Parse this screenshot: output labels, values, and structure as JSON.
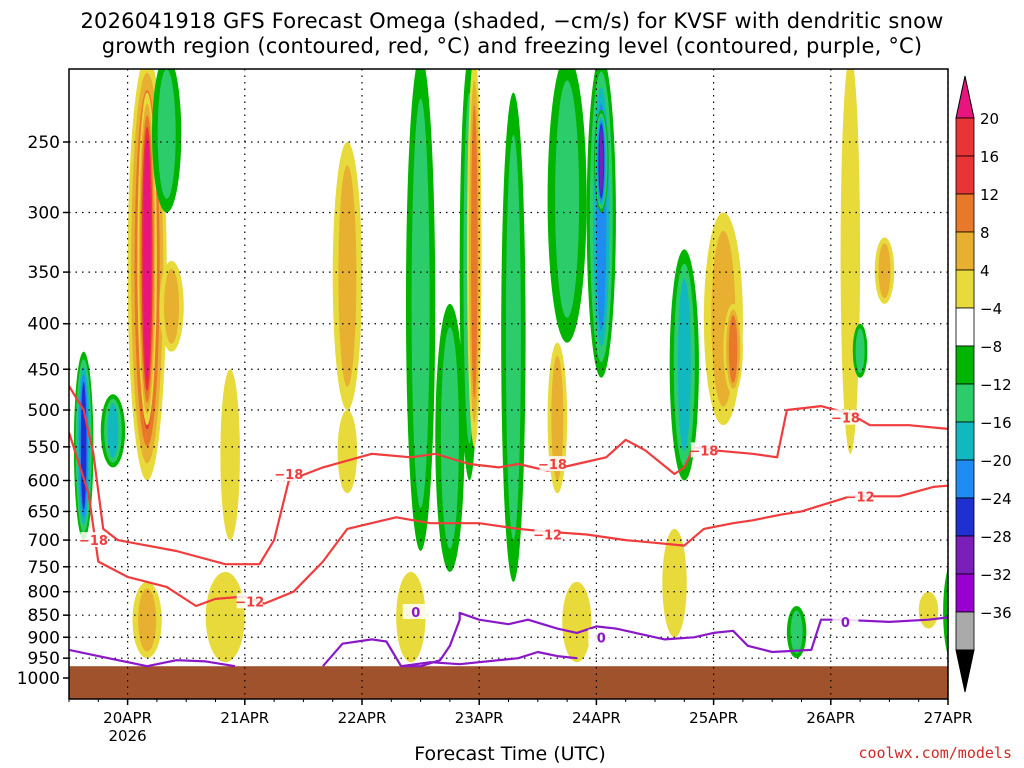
{
  "page": {
    "title_line1": "2026041918 GFS Forecast Omega (shaded, −cm/s) for KVSF with dendritic snow",
    "title_line2": "growth region (contoured, red, °C) and freezing level (contoured, purple, °C)",
    "credit": "coolwx.com/models"
  },
  "chart_data": {
    "type": "heatmap",
    "title": "2026041918 GFS Forecast Omega (shaded, −cm/s) for KVSF with dendritic snow growth region (contoured, red, °C) and freezing level (contoured, purple, °C)",
    "xlabel": "Forecast Time (UTC)",
    "ylabel": "",
    "x_range_hours": [
      -12,
      168
    ],
    "y_scale": "log-pressure (hPa), inverted",
    "ylim": [
      1000,
      200
    ],
    "grid": true,
    "x_ticks": [
      {
        "hour": 0,
        "label": "20APR",
        "sublabel": "2026"
      },
      {
        "hour": 24,
        "label": "21APR"
      },
      {
        "hour": 48,
        "label": "22APR"
      },
      {
        "hour": 72,
        "label": "23APR"
      },
      {
        "hour": 96,
        "label": "24APR"
      },
      {
        "hour": 120,
        "label": "25APR"
      },
      {
        "hour": 144,
        "label": "26APR"
      },
      {
        "hour": 168,
        "label": "27APR"
      }
    ],
    "y_ticks": [
      {
        "p": 250,
        "label": "250"
      },
      {
        "p": 300,
        "label": "300"
      },
      {
        "p": 350,
        "label": "350"
      },
      {
        "p": 400,
        "label": "400"
      },
      {
        "p": 450,
        "label": "450"
      },
      {
        "p": 500,
        "label": "500"
      },
      {
        "p": 550,
        "label": "550"
      },
      {
        "p": 600,
        "label": "600"
      },
      {
        "p": 650,
        "label": "650"
      },
      {
        "p": 700,
        "label": "700"
      },
      {
        "p": 750,
        "label": "750"
      },
      {
        "p": 800,
        "label": "800"
      },
      {
        "p": 850,
        "label": "850"
      },
      {
        "p": 900,
        "label": "900"
      },
      {
        "p": 950,
        "label": "950"
      },
      {
        "p": 1000,
        "label": "1000"
      }
    ],
    "colorbar": {
      "levels": [
        {
          "label": "20",
          "color": "#e8157e"
        },
        {
          "label": "16",
          "color": "#e83434"
        },
        {
          "label": "12",
          "color": "#e8782a"
        },
        {
          "label": "8",
          "color": "#e8b030"
        },
        {
          "label": "4",
          "color": "#e8da3a"
        },
        {
          "label": "−4",
          "color": "#ffffff"
        },
        {
          "label": "−8",
          "color": "#00b400"
        },
        {
          "label": "−12",
          "color": "#2ccc6a"
        },
        {
          "label": "−16",
          "color": "#12b8c0"
        },
        {
          "label": "−20",
          "color": "#1e8cf0"
        },
        {
          "label": "−24",
          "color": "#1e30d0"
        },
        {
          "label": "−28",
          "color": "#7a1fb8"
        },
        {
          "label": "−32",
          "color": "#9800d0"
        },
        {
          "label": "−36",
          "color": "#aaaaaa"
        }
      ],
      "top_color": "#e8157e",
      "bottom_color": "#000000"
    },
    "omega_blobs": [
      {
        "hour": 4,
        "p0": 200,
        "p1": 600,
        "hw": 4,
        "value": 20
      },
      {
        "hour": 4,
        "p0": 220,
        "p1": 520,
        "hw": 2,
        "value": 24
      },
      {
        "hour": 9,
        "p0": 340,
        "p1": 430,
        "hw": 2.5,
        "value": 9
      },
      {
        "hour": -9,
        "p0": 430,
        "p1": 700,
        "hw": 2,
        "value": -20
      },
      {
        "hour": -3,
        "p0": 480,
        "p1": 580,
        "hw": 2.5,
        "value": -12
      },
      {
        "hour": 8,
        "p0": 200,
        "p1": 300,
        "hw": 3,
        "value": -8
      },
      {
        "hour": 21,
        "p0": 450,
        "p1": 700,
        "hw": 2,
        "value": 6
      },
      {
        "hour": 45,
        "p0": 250,
        "p1": 500,
        "hw": 3,
        "value": 10
      },
      {
        "hour": 45,
        "p0": 500,
        "p1": 620,
        "hw": 2,
        "value": 6
      },
      {
        "hour": 60,
        "p0": 200,
        "p1": 720,
        "hw": 3,
        "value": -9
      },
      {
        "hour": 66,
        "p0": 380,
        "p1": 760,
        "hw": 3,
        "value": -10
      },
      {
        "hour": 70,
        "p0": 200,
        "p1": 600,
        "hw": 2,
        "value": -9
      },
      {
        "hour": 71,
        "p0": 200,
        "p1": 550,
        "hw": 1.5,
        "value": 13
      },
      {
        "hour": 79,
        "p0": 220,
        "p1": 780,
        "hw": 2.5,
        "value": -9
      },
      {
        "hour": 88,
        "p0": 420,
        "p1": 620,
        "hw": 2,
        "value": 8
      },
      {
        "hour": 90,
        "p0": 200,
        "p1": 420,
        "hw": 4,
        "value": -10
      },
      {
        "hour": 97,
        "p0": 200,
        "p1": 460,
        "hw": 3,
        "value": -17
      },
      {
        "hour": 97,
        "p0": 230,
        "p1": 300,
        "hw": 1.5,
        "value": -25
      },
      {
        "hour": 114,
        "p0": 330,
        "p1": 600,
        "hw": 3,
        "value": -12
      },
      {
        "hour": 122,
        "p0": 300,
        "p1": 520,
        "hw": 4,
        "value": 8
      },
      {
        "hour": 124,
        "p0": 380,
        "p1": 480,
        "hw": 2,
        "value": 12
      },
      {
        "hour": 148,
        "p0": 200,
        "p1": 560,
        "hw": 2,
        "value": 5
      },
      {
        "hour": 155,
        "p0": 320,
        "p1": 380,
        "hw": 2,
        "value": 9
      },
      {
        "hour": 150,
        "p0": 400,
        "p1": 460,
        "hw": 1.5,
        "value": -9
      },
      {
        "hour": 4,
        "p0": 780,
        "p1": 950,
        "hw": 3,
        "value": 8
      },
      {
        "hour": 20,
        "p0": 760,
        "p1": 960,
        "hw": 4,
        "value": 7
      },
      {
        "hour": 58,
        "p0": 760,
        "p1": 960,
        "hw": 3,
        "value": 5
      },
      {
        "hour": 92,
        "p0": 780,
        "p1": 960,
        "hw": 3,
        "value": 6
      },
      {
        "hour": 112,
        "p0": 680,
        "p1": 900,
        "hw": 2.5,
        "value": 7
      },
      {
        "hour": 137,
        "p0": 830,
        "p1": 950,
        "hw": 2,
        "value": -10
      },
      {
        "hour": 164,
        "p0": 800,
        "p1": 880,
        "hw": 2,
        "value": 7
      },
      {
        "hour": 169,
        "p0": 740,
        "p1": 960,
        "hw": 2,
        "value": -11
      },
      {
        "hour": 169,
        "p0": 830,
        "p1": 920,
        "hw": 1.2,
        "value": -28
      }
    ],
    "dgz_contours": [
      {
        "label": "−18",
        "label_at": [
          {
            "hour": -7,
            "p": 700
          },
          {
            "hour": 33,
            "p": 590
          },
          {
            "hour": 87,
            "p": 575
          },
          {
            "hour": 118,
            "p": 555
          },
          {
            "hour": 147,
            "p": 510
          }
        ],
        "points": [
          [
            -12,
            470
          ],
          [
            -9,
            500
          ],
          [
            -7,
            560
          ],
          [
            -5,
            680
          ],
          [
            -2,
            700
          ],
          [
            10,
            720
          ],
          [
            20,
            745
          ],
          [
            27,
            745
          ],
          [
            30,
            700
          ],
          [
            33,
            600
          ],
          [
            40,
            580
          ],
          [
            50,
            560
          ],
          [
            58,
            565
          ],
          [
            63,
            560
          ],
          [
            70,
            575
          ],
          [
            76,
            580
          ],
          [
            80,
            575
          ],
          [
            86,
            585
          ],
          [
            92,
            575
          ],
          [
            98,
            565
          ],
          [
            102,
            540
          ],
          [
            106,
            555
          ],
          [
            112,
            590
          ],
          [
            114,
            580
          ],
          [
            116,
            550
          ],
          [
            120,
            555
          ],
          [
            128,
            560
          ],
          [
            133,
            565
          ],
          [
            135,
            500
          ],
          [
            142,
            495
          ],
          [
            148,
            505
          ],
          [
            152,
            520
          ],
          [
            160,
            520
          ],
          [
            168,
            525
          ],
          [
            173,
            525
          ]
        ]
      },
      {
        "label": "−12",
        "label_at": [
          {
            "hour": 25,
            "p": 820
          },
          {
            "hour": 86,
            "p": 690
          },
          {
            "hour": 150,
            "p": 625
          }
        ],
        "points": [
          [
            -12,
            530
          ],
          [
            -8,
            620
          ],
          [
            -6,
            740
          ],
          [
            0,
            770
          ],
          [
            8,
            790
          ],
          [
            14,
            830
          ],
          [
            18,
            815
          ],
          [
            24,
            810
          ],
          [
            28,
            825
          ],
          [
            34,
            800
          ],
          [
            40,
            740
          ],
          [
            45,
            680
          ],
          [
            55,
            660
          ],
          [
            62,
            670
          ],
          [
            72,
            670
          ],
          [
            80,
            680
          ],
          [
            86,
            685
          ],
          [
            94,
            690
          ],
          [
            102,
            700
          ],
          [
            108,
            705
          ],
          [
            114,
            710
          ],
          [
            118,
            680
          ],
          [
            124,
            670
          ],
          [
            128,
            665
          ],
          [
            134,
            655
          ],
          [
            138,
            650
          ],
          [
            148,
            625
          ],
          [
            158,
            625
          ],
          [
            165,
            610
          ],
          [
            173,
            605
          ]
        ]
      }
    ],
    "freezing_contours": [
      {
        "label": "0",
        "label_at": [
          {
            "hour": 59,
            "p": 843
          },
          {
            "hour": 97,
            "p": 900
          },
          {
            "hour": 147,
            "p": 865
          }
        ],
        "points": [
          [
            -12,
            930
          ],
          [
            -6,
            945
          ],
          [
            4,
            970
          ],
          [
            10,
            955
          ],
          [
            16,
            958
          ],
          [
            22,
            970
          ]
        ]
      },
      {
        "label": "",
        "label_at": [],
        "points": [
          [
            40,
            970
          ],
          [
            44,
            915
          ],
          [
            50,
            905
          ],
          [
            53,
            910
          ],
          [
            56,
            970
          ],
          [
            60,
            970
          ],
          [
            64,
            955
          ],
          [
            66,
            920
          ],
          [
            68,
            860
          ],
          [
            68,
            845
          ],
          [
            72,
            860
          ],
          [
            78,
            870
          ],
          [
            82,
            860
          ],
          [
            88,
            880
          ],
          [
            92,
            890
          ],
          [
            96,
            875
          ],
          [
            100,
            880
          ],
          [
            106,
            895
          ],
          [
            110,
            905
          ],
          [
            116,
            900
          ],
          [
            120,
            890
          ],
          [
            124,
            885
          ],
          [
            127,
            920
          ],
          [
            132,
            935
          ],
          [
            140,
            930
          ],
          [
            142,
            860
          ],
          [
            146,
            860
          ],
          [
            156,
            865
          ],
          [
            164,
            860
          ],
          [
            168,
            855
          ],
          [
            173,
            855
          ]
        ]
      },
      {
        "label": "",
        "label_at": [],
        "points": [
          [
            56,
            970
          ],
          [
            62,
            960
          ],
          [
            68,
            965
          ],
          [
            72,
            960
          ],
          [
            80,
            950
          ],
          [
            84,
            935
          ],
          [
            88,
            945
          ],
          [
            92,
            950
          ]
        ]
      }
    ]
  }
}
